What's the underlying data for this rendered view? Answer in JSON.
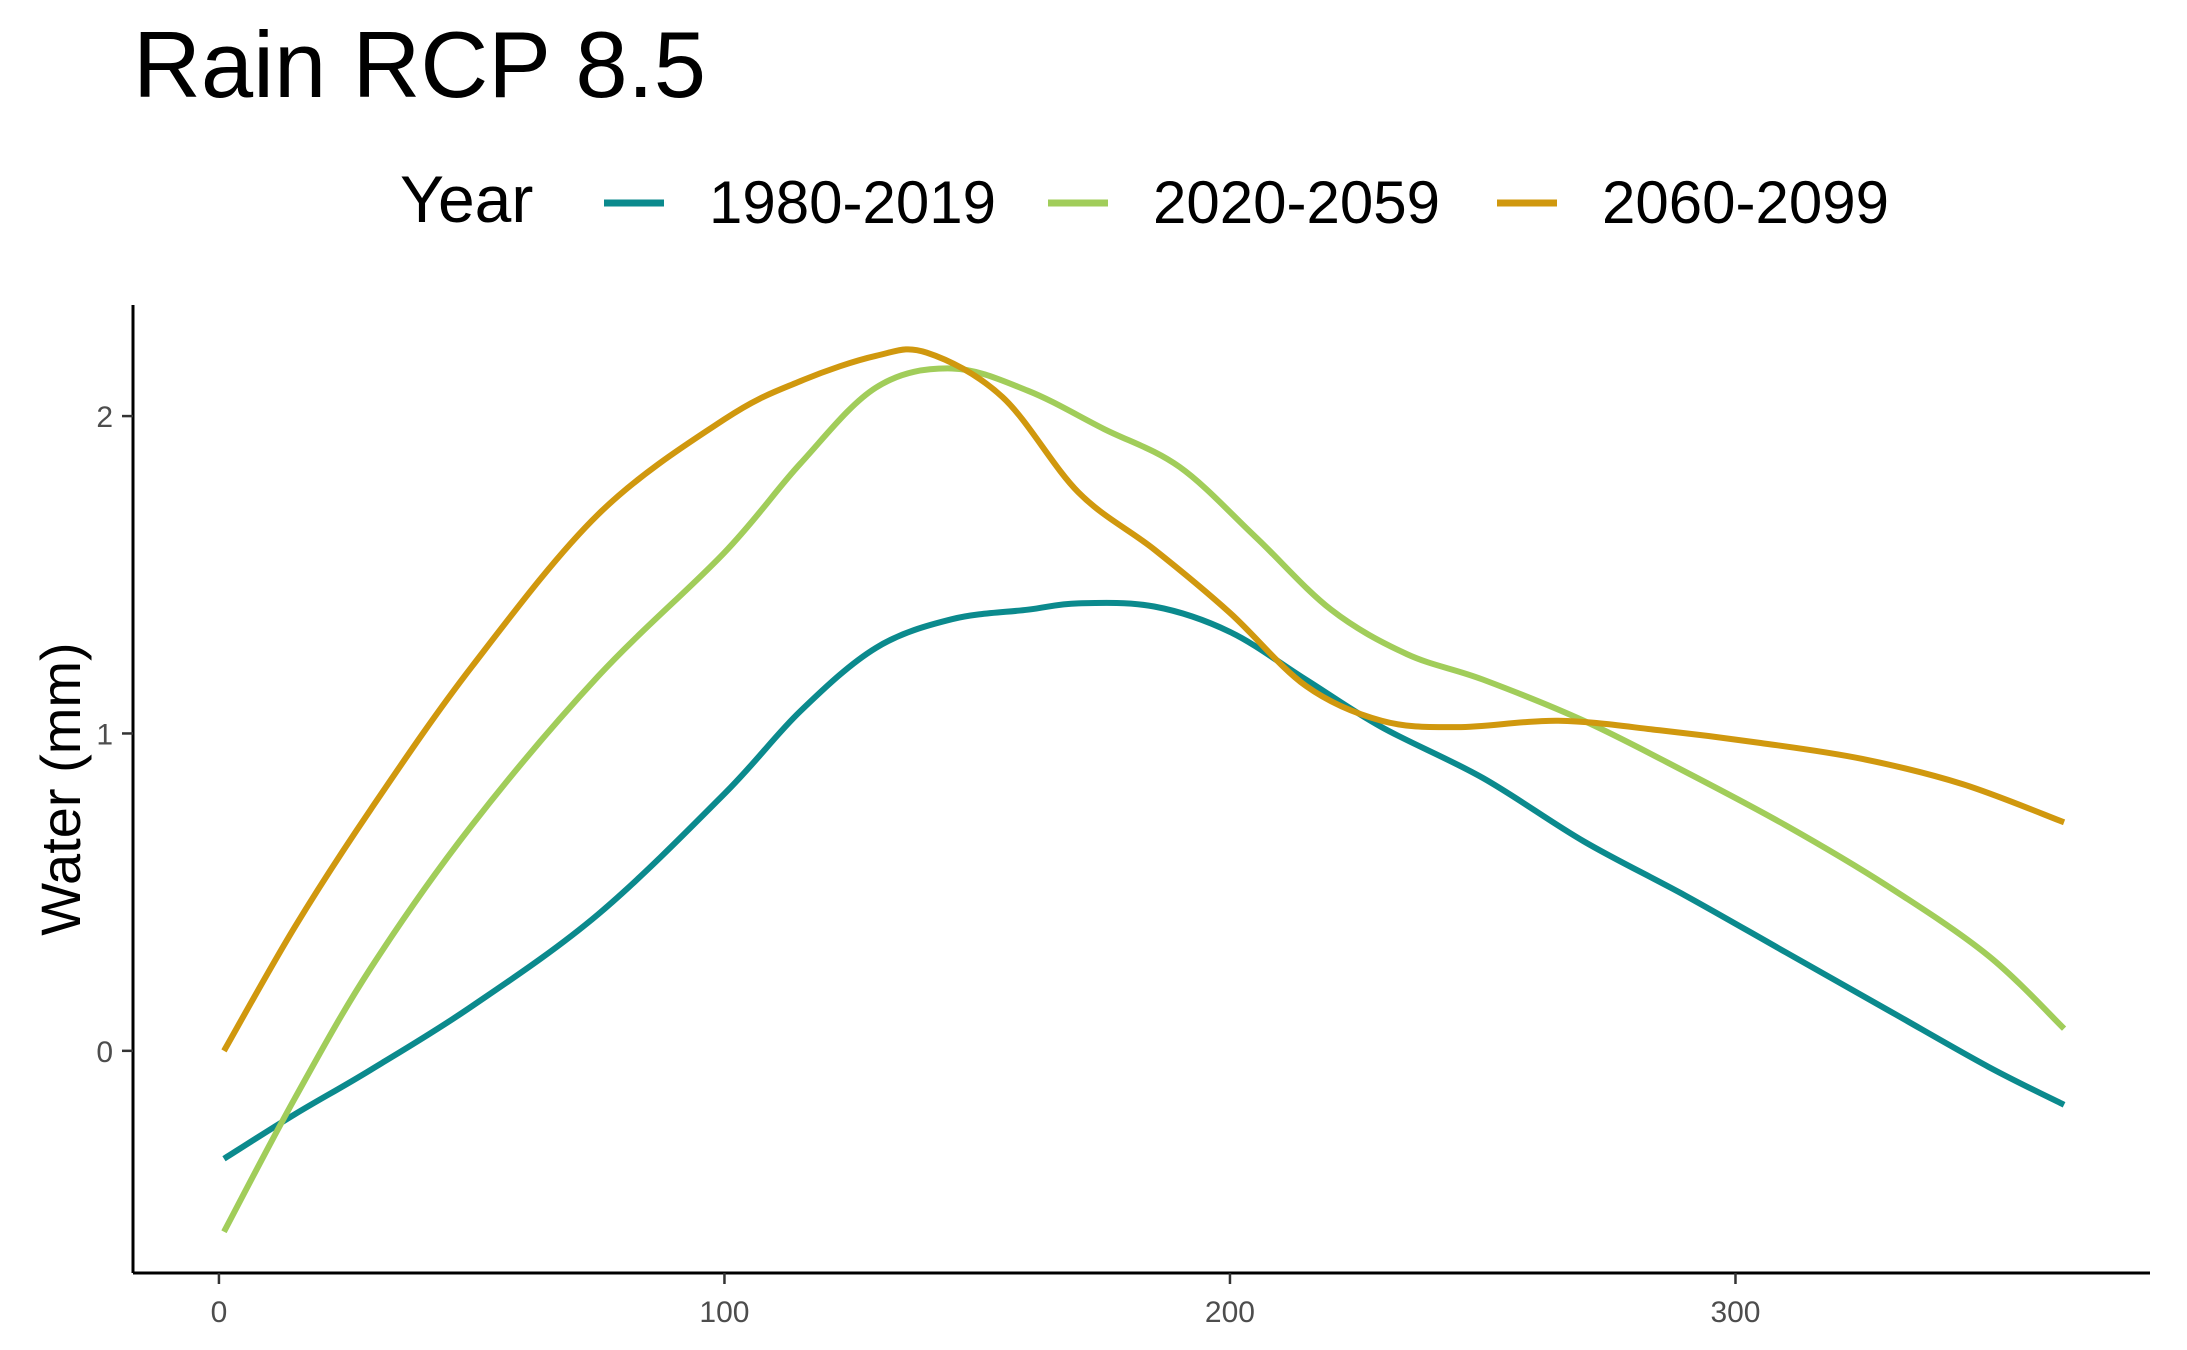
{
  "chart_data": {
    "type": "line",
    "title": "Rain RCP 8.5",
    "xlabel": "",
    "ylabel": "Water (mm)",
    "legend_title": "Year",
    "legend_position": "top",
    "grid": false,
    "xlim": [
      -17,
      382
    ],
    "ylim": [
      -0.7,
      2.35
    ],
    "x_ticks": [
      0,
      100,
      200,
      300
    ],
    "y_ticks": [
      0,
      1,
      2
    ],
    "series": [
      {
        "name": "1980-2019",
        "color": "#0b8a8d",
        "points": [
          [
            1,
            -0.34
          ],
          [
            15,
            -0.2
          ],
          [
            30,
            -0.06
          ],
          [
            50,
            0.14
          ],
          [
            75,
            0.43
          ],
          [
            100,
            0.81
          ],
          [
            115,
            1.07
          ],
          [
            130,
            1.27
          ],
          [
            145,
            1.36
          ],
          [
            160,
            1.39
          ],
          [
            170,
            1.41
          ],
          [
            185,
            1.4
          ],
          [
            200,
            1.32
          ],
          [
            215,
            1.17
          ],
          [
            230,
            1.02
          ],
          [
            250,
            0.86
          ],
          [
            270,
            0.66
          ],
          [
            290,
            0.49
          ],
          [
            310,
            0.31
          ],
          [
            330,
            0.13
          ],
          [
            350,
            -0.05
          ],
          [
            365,
            -0.17
          ]
        ]
      },
      {
        "name": "2020-2059",
        "color": "#a1cd5a",
        "points": [
          [
            1,
            -0.57
          ],
          [
            15,
            -0.15
          ],
          [
            30,
            0.26
          ],
          [
            50,
            0.71
          ],
          [
            75,
            1.18
          ],
          [
            100,
            1.57
          ],
          [
            115,
            1.85
          ],
          [
            130,
            2.09
          ],
          [
            145,
            2.15
          ],
          [
            160,
            2.08
          ],
          [
            175,
            1.96
          ],
          [
            190,
            1.84
          ],
          [
            205,
            1.62
          ],
          [
            220,
            1.39
          ],
          [
            235,
            1.25
          ],
          [
            250,
            1.17
          ],
          [
            270,
            1.04
          ],
          [
            290,
            0.88
          ],
          [
            310,
            0.71
          ],
          [
            330,
            0.52
          ],
          [
            350,
            0.3
          ],
          [
            365,
            0.07
          ]
        ]
      },
      {
        "name": "2060-2099",
        "color": "#d0980e",
        "points": [
          [
            1,
            0.0
          ],
          [
            15,
            0.39
          ],
          [
            30,
            0.76
          ],
          [
            50,
            1.21
          ],
          [
            75,
            1.69
          ],
          [
            100,
            1.99
          ],
          [
            115,
            2.11
          ],
          [
            130,
            2.19
          ],
          [
            140,
            2.2
          ],
          [
            155,
            2.06
          ],
          [
            170,
            1.76
          ],
          [
            185,
            1.58
          ],
          [
            200,
            1.38
          ],
          [
            215,
            1.15
          ],
          [
            230,
            1.04
          ],
          [
            245,
            1.02
          ],
          [
            265,
            1.04
          ],
          [
            285,
            1.01
          ],
          [
            305,
            0.97
          ],
          [
            325,
            0.92
          ],
          [
            345,
            0.84
          ],
          [
            365,
            0.72
          ]
        ]
      }
    ]
  }
}
